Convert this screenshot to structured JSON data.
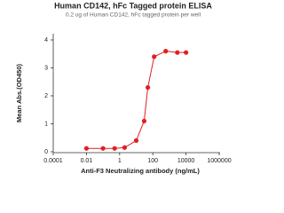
{
  "chart_data": {
    "type": "scatter",
    "title": "Human CD142, hFc Tagged protein ELISA",
    "subtitle": "0.2 ug of Human CD142, hFc tagged protein per well",
    "x_label": "Anti-F3 Neutralizing antibody (ng/mL)",
    "y_label": "Mean Abs.(OD450)",
    "x": [
      0.01,
      0.1,
      0.5,
      2,
      10,
      30,
      50,
      120,
      600,
      3000,
      10000
    ],
    "series": [
      {
        "name": "CD142",
        "color": "#e02020",
        "values": [
          0.12,
          0.12,
          0.12,
          0.15,
          0.4,
          1.1,
          2.3,
          3.4,
          3.6,
          3.55,
          3.55
        ]
      }
    ],
    "xscale": "log",
    "xlim": [
      0.0001,
      1000000
    ],
    "xticks": [
      0.0001,
      0.01,
      1,
      100,
      10000,
      1000000
    ],
    "ylim": [
      0,
      4.2
    ],
    "yticks": [
      0,
      1,
      2,
      3,
      4
    ]
  }
}
